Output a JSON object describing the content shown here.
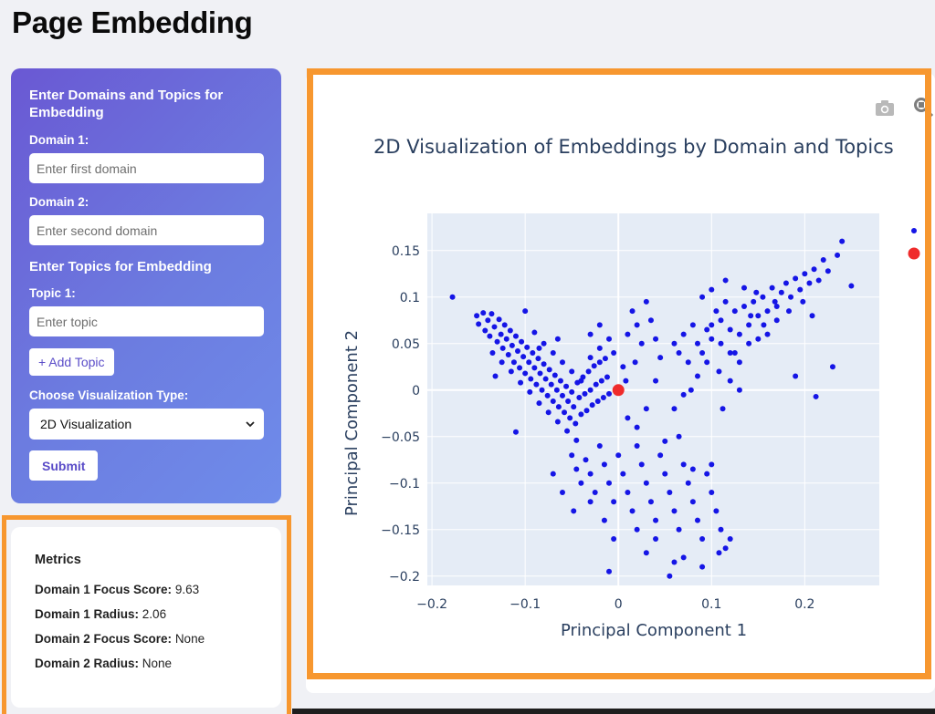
{
  "page": {
    "title": "Page Embedding"
  },
  "form": {
    "heading": "Enter Domains and Topics for Embedding",
    "domain1_label": "Domain 1:",
    "domain1_placeholder": "Enter first domain",
    "domain2_label": "Domain 2:",
    "domain2_placeholder": "Enter second domain",
    "topics_heading": "Enter Topics for Embedding",
    "topic1_label": "Topic 1:",
    "topic1_placeholder": "Enter topic",
    "add_topic_label": "+ Add Topic",
    "vis_label": "Choose Visualization Type:",
    "vis_selected": "2D Visualization",
    "submit_label": "Submit"
  },
  "metrics": {
    "title": "Metrics",
    "rows": [
      {
        "label": "Domain 1 Focus Score:",
        "value": "9.63"
      },
      {
        "label": "Domain 1 Radius:",
        "value": "2.06"
      },
      {
        "label": "Domain 2 Focus Score:",
        "value": "None"
      },
      {
        "label": "Domain 2 Radius:",
        "value": "None"
      }
    ]
  },
  "toolbar": {
    "icons": [
      "camera-icon",
      "zoom-icon"
    ]
  },
  "colors": {
    "accent": "#6a58d3",
    "highlight": "#f7972f",
    "points": "#1515e6",
    "centroid": "#ef2b2b"
  },
  "chart_data": {
    "type": "scatter",
    "title": "2D Visualization of Embeddings by Domain and Topics",
    "xlabel": "Principal Component 1",
    "ylabel": "Principal Component 2",
    "xlim": [
      -0.205,
      0.28
    ],
    "ylim": [
      -0.21,
      0.19
    ],
    "xticks": [
      -0.2,
      -0.1,
      0,
      0.1,
      0.2
    ],
    "xtick_labels": [
      "−0.2",
      "−0.1",
      "0",
      "0.1",
      "0.2"
    ],
    "yticks": [
      -0.2,
      -0.15,
      -0.1,
      -0.05,
      0,
      0.05,
      0.1,
      0.15
    ],
    "ytick_labels": [
      "−0.2",
      "−0.15",
      "−0.1",
      "−0.05",
      "0",
      "0.05",
      "0.1",
      "0.15"
    ],
    "grid": true,
    "legend": "right (clipped)",
    "centroid": {
      "x": 0.0,
      "y": 0.0
    },
    "series": [
      {
        "color": "#1515e6",
        "points": [
          [
            -0.178,
            0.1
          ],
          [
            -0.152,
            0.08
          ],
          [
            -0.15,
            0.071
          ],
          [
            -0.145,
            0.083
          ],
          [
            -0.143,
            0.064
          ],
          [
            -0.14,
            0.075
          ],
          [
            -0.138,
            0.058
          ],
          [
            -0.136,
            0.082
          ],
          [
            -0.133,
            0.068
          ],
          [
            -0.13,
            0.052
          ],
          [
            -0.128,
            0.076
          ],
          [
            -0.126,
            0.06
          ],
          [
            -0.124,
            0.045
          ],
          [
            -0.122,
            0.07
          ],
          [
            -0.12,
            0.055
          ],
          [
            -0.118,
            0.038
          ],
          [
            -0.116,
            0.064
          ],
          [
            -0.114,
            0.048
          ],
          [
            -0.112,
            0.03
          ],
          [
            -0.11,
            0.058
          ],
          [
            -0.108,
            0.042
          ],
          [
            -0.106,
            0.024
          ],
          [
            -0.104,
            0.052
          ],
          [
            -0.102,
            0.036
          ],
          [
            -0.1,
            0.018
          ],
          [
            -0.098,
            0.046
          ],
          [
            -0.096,
            0.03
          ],
          [
            -0.094,
            0.012
          ],
          [
            -0.092,
            0.04
          ],
          [
            -0.09,
            0.024
          ],
          [
            -0.088,
            0.006
          ],
          [
            -0.086,
            0.034
          ],
          [
            -0.084,
            0.018
          ],
          [
            -0.082,
            0.0
          ],
          [
            -0.08,
            0.028
          ],
          [
            -0.078,
            0.012
          ],
          [
            -0.076,
            -0.006
          ],
          [
            -0.074,
            0.022
          ],
          [
            -0.072,
            0.006
          ],
          [
            -0.07,
            -0.012
          ],
          [
            -0.068,
            0.016
          ],
          [
            -0.066,
            0.0
          ],
          [
            -0.064,
            -0.018
          ],
          [
            -0.062,
            0.01
          ],
          [
            -0.06,
            -0.006
          ],
          [
            -0.058,
            -0.024
          ],
          [
            -0.056,
            0.004
          ],
          [
            -0.054,
            -0.012
          ],
          [
            -0.052,
            -0.03
          ],
          [
            -0.05,
            -0.002
          ],
          [
            -0.048,
            -0.018
          ],
          [
            -0.046,
            -0.036
          ],
          [
            -0.044,
            0.008
          ],
          [
            -0.042,
            -0.008
          ],
          [
            -0.04,
            -0.026
          ],
          [
            -0.038,
            0.014
          ],
          [
            -0.036,
            -0.004
          ],
          [
            -0.034,
            -0.022
          ],
          [
            -0.032,
            0.02
          ],
          [
            -0.03,
            0.0
          ],
          [
            -0.028,
            -0.016
          ],
          [
            -0.026,
            0.026
          ],
          [
            -0.024,
            0.006
          ],
          [
            -0.022,
            -0.012
          ],
          [
            -0.02,
            0.03
          ],
          [
            -0.018,
            0.01
          ],
          [
            -0.016,
            -0.008
          ],
          [
            -0.014,
            0.034
          ],
          [
            -0.012,
            0.014
          ],
          [
            -0.01,
            -0.004
          ],
          [
            -0.135,
            0.04
          ],
          [
            -0.125,
            0.03
          ],
          [
            -0.115,
            0.02
          ],
          [
            -0.105,
            0.008
          ],
          [
            -0.095,
            -0.002
          ],
          [
            -0.085,
            -0.014
          ],
          [
            -0.075,
            -0.024
          ],
          [
            -0.065,
            -0.034
          ],
          [
            -0.055,
            -0.044
          ],
          [
            -0.045,
            -0.054
          ],
          [
            -0.11,
            -0.045
          ],
          [
            -0.132,
            0.015
          ],
          [
            -0.1,
            0.085
          ],
          [
            -0.09,
            0.062
          ],
          [
            -0.08,
            0.05
          ],
          [
            -0.07,
            0.04
          ],
          [
            -0.06,
            0.03
          ],
          [
            -0.05,
            0.02
          ],
          [
            -0.04,
            0.01
          ],
          [
            -0.03,
            0.035
          ],
          [
            -0.02,
            0.045
          ],
          [
            -0.01,
            0.055
          ],
          [
            -0.005,
            0.04
          ],
          [
            0.005,
            0.025
          ],
          [
            0.01,
            0.06
          ],
          [
            0.015,
            0.085
          ],
          [
            0.02,
            0.07
          ],
          [
            0.025,
            0.05
          ],
          [
            0.03,
            0.095
          ],
          [
            0.035,
            0.075
          ],
          [
            0.04,
            0.055
          ],
          [
            0.045,
            0.035
          ],
          [
            0.008,
            0.01
          ],
          [
            0.018,
            0.03
          ],
          [
            -0.03,
            0.06
          ],
          [
            -0.02,
            0.07
          ],
          [
            -0.085,
            0.045
          ],
          [
            -0.065,
            0.055
          ],
          [
            -0.05,
            -0.07
          ],
          [
            -0.045,
            -0.085
          ],
          [
            -0.04,
            -0.1
          ],
          [
            -0.035,
            -0.075
          ],
          [
            -0.03,
            -0.09
          ],
          [
            -0.025,
            -0.11
          ],
          [
            -0.02,
            -0.06
          ],
          [
            -0.015,
            -0.08
          ],
          [
            -0.01,
            -0.1
          ],
          [
            -0.005,
            -0.12
          ],
          [
            0.0,
            -0.07
          ],
          [
            0.005,
            -0.09
          ],
          [
            0.01,
            -0.11
          ],
          [
            0.015,
            -0.13
          ],
          [
            0.02,
            -0.06
          ],
          [
            0.025,
            -0.08
          ],
          [
            0.03,
            -0.1
          ],
          [
            0.035,
            -0.12
          ],
          [
            0.04,
            -0.14
          ],
          [
            0.045,
            -0.07
          ],
          [
            0.05,
            -0.09
          ],
          [
            0.055,
            -0.11
          ],
          [
            0.06,
            -0.13
          ],
          [
            0.065,
            -0.15
          ],
          [
            0.07,
            -0.08
          ],
          [
            0.075,
            -0.1
          ],
          [
            0.08,
            -0.12
          ],
          [
            0.085,
            -0.14
          ],
          [
            0.09,
            -0.16
          ],
          [
            0.095,
            -0.09
          ],
          [
            0.1,
            -0.11
          ],
          [
            0.105,
            -0.13
          ],
          [
            0.11,
            -0.15
          ],
          [
            0.115,
            -0.17
          ],
          [
            0.12,
            -0.16
          ],
          [
            0.108,
            -0.175
          ],
          [
            0.03,
            -0.175
          ],
          [
            0.06,
            -0.185
          ],
          [
            -0.005,
            -0.16
          ],
          [
            -0.01,
            -0.195
          ],
          [
            0.055,
            -0.2
          ],
          [
            0.07,
            -0.18
          ],
          [
            0.09,
            -0.19
          ],
          [
            0.04,
            -0.16
          ],
          [
            -0.07,
            -0.09
          ],
          [
            -0.06,
            -0.11
          ],
          [
            -0.048,
            -0.13
          ],
          [
            -0.03,
            -0.12
          ],
          [
            -0.015,
            -0.14
          ],
          [
            0.02,
            -0.15
          ],
          [
            0.05,
            -0.055
          ],
          [
            0.065,
            -0.05
          ],
          [
            0.08,
            -0.085
          ],
          [
            0.1,
            -0.08
          ],
          [
            0.06,
            -0.02
          ],
          [
            0.07,
            -0.005
          ],
          [
            0.04,
            0.01
          ],
          [
            0.03,
            -0.02
          ],
          [
            0.02,
            -0.04
          ],
          [
            0.01,
            -0.03
          ],
          [
            0.06,
            0.05
          ],
          [
            0.065,
            0.04
          ],
          [
            0.07,
            0.06
          ],
          [
            0.075,
            0.03
          ],
          [
            0.08,
            0.07
          ],
          [
            0.085,
            0.05
          ],
          [
            0.09,
            0.04
          ],
          [
            0.095,
            0.065
          ],
          [
            0.1,
            0.055
          ],
          [
            0.105,
            0.085
          ],
          [
            0.11,
            0.075
          ],
          [
            0.115,
            0.095
          ],
          [
            0.12,
            0.065
          ],
          [
            0.125,
            0.085
          ],
          [
            0.13,
            0.06
          ],
          [
            0.135,
            0.09
          ],
          [
            0.14,
            0.07
          ],
          [
            0.145,
            0.095
          ],
          [
            0.15,
            0.08
          ],
          [
            0.155,
            0.1
          ],
          [
            0.16,
            0.085
          ],
          [
            0.165,
            0.11
          ],
          [
            0.17,
            0.09
          ],
          [
            0.175,
            0.105
          ],
          [
            0.18,
            0.115
          ],
          [
            0.185,
            0.1
          ],
          [
            0.19,
            0.12
          ],
          [
            0.195,
            0.108
          ],
          [
            0.2,
            0.125
          ],
          [
            0.205,
            0.115
          ],
          [
            0.21,
            0.13
          ],
          [
            0.215,
            0.118
          ],
          [
            0.22,
            0.14
          ],
          [
            0.225,
            0.128
          ],
          [
            0.235,
            0.145
          ],
          [
            0.24,
            0.16
          ],
          [
            0.25,
            0.112
          ],
          [
            0.23,
            0.025
          ],
          [
            0.212,
            -0.007
          ],
          [
            0.19,
            0.015
          ],
          [
            0.115,
            0.118
          ],
          [
            0.1,
            0.108
          ],
          [
            0.125,
            0.04
          ],
          [
            0.14,
            0.05
          ],
          [
            0.16,
            0.06
          ],
          [
            0.17,
            0.075
          ],
          [
            0.15,
            0.055
          ],
          [
            0.13,
            0.03
          ],
          [
            0.12,
            0.01
          ],
          [
            0.112,
            -0.02
          ],
          [
            0.13,
            0.0
          ],
          [
            0.095,
            0.03
          ],
          [
            0.085,
            0.015
          ],
          [
            0.078,
            0.0
          ],
          [
            0.108,
            0.02
          ],
          [
            0.142,
            0.08
          ],
          [
            0.156,
            0.07
          ],
          [
            0.168,
            0.095
          ],
          [
            0.183,
            0.085
          ],
          [
            0.198,
            0.095
          ],
          [
            0.208,
            0.08
          ],
          [
            0.09,
            0.1
          ],
          [
            0.1,
            0.07
          ],
          [
            0.11,
            0.05
          ],
          [
            0.12,
            0.04
          ],
          [
            0.135,
            0.11
          ],
          [
            0.148,
            0.105
          ]
        ]
      }
    ],
    "overlay_series": [
      {
        "color": "#ef2b2b",
        "points": [
          [
            0.0,
            0.0
          ]
        ]
      }
    ]
  }
}
